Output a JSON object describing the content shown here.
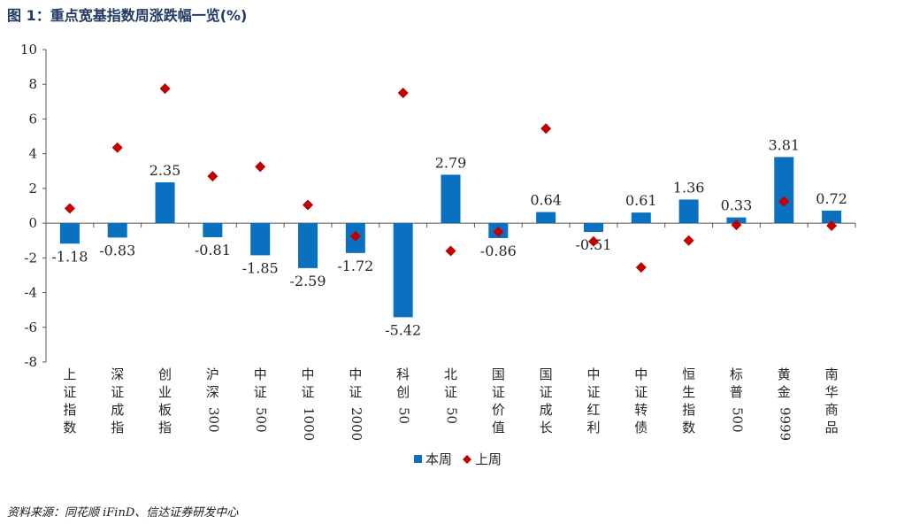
{
  "figure_title": "图 1：重点宽基指数周涨跌幅一览(%)",
  "source_text": "资料来源：同花顺 iFinD、信达证券研发中心",
  "colors": {
    "bar": "#0a70c0",
    "marker": "#c00000",
    "axis": "#555555",
    "text": "#262626"
  },
  "chart_data": {
    "type": "bar",
    "categories": [
      "上证指数",
      "深证成指",
      "创业板指",
      "沪深300",
      "中证500",
      "中证1000",
      "中证2000",
      "科创50",
      "北证50",
      "国证价值",
      "国证成长",
      "中证红利",
      "中证转债",
      "恒生指数",
      "标普500",
      "黄金9999",
      "南华商品"
    ],
    "series": [
      {
        "name": "本周",
        "type": "bar",
        "values": [
          -1.18,
          -0.83,
          2.35,
          -0.81,
          -1.85,
          -2.59,
          -1.72,
          -5.42,
          2.79,
          -0.86,
          0.64,
          -0.51,
          0.61,
          1.36,
          0.33,
          3.81,
          0.72
        ]
      },
      {
        "name": "上周",
        "type": "scatter",
        "values": [
          0.85,
          4.35,
          7.75,
          2.7,
          3.25,
          1.05,
          -0.75,
          7.5,
          -1.6,
          -0.5,
          5.45,
          -1.05,
          -2.55,
          -1.0,
          -0.1,
          1.25,
          -0.15
        ]
      }
    ],
    "data_labels": [
      "-1.18",
      "-0.83",
      "2.35",
      "-0.81",
      "-1.85",
      "-2.59",
      "-1.72",
      "-5.42",
      "2.79",
      "-0.86",
      "0.64",
      "-0.51",
      "0.61",
      "1.36",
      "0.33",
      "3.81",
      "0.72"
    ],
    "ylim": [
      -8,
      10
    ],
    "yticks": [
      -8,
      -6,
      -4,
      -2,
      0,
      2,
      4,
      6,
      8,
      10
    ],
    "ytick_labels": [
      "-8",
      "-6",
      "-4",
      "-2",
      "0",
      "2",
      "4",
      "6",
      "8",
      "10"
    ],
    "legend_position": "bottom",
    "grid": false
  }
}
